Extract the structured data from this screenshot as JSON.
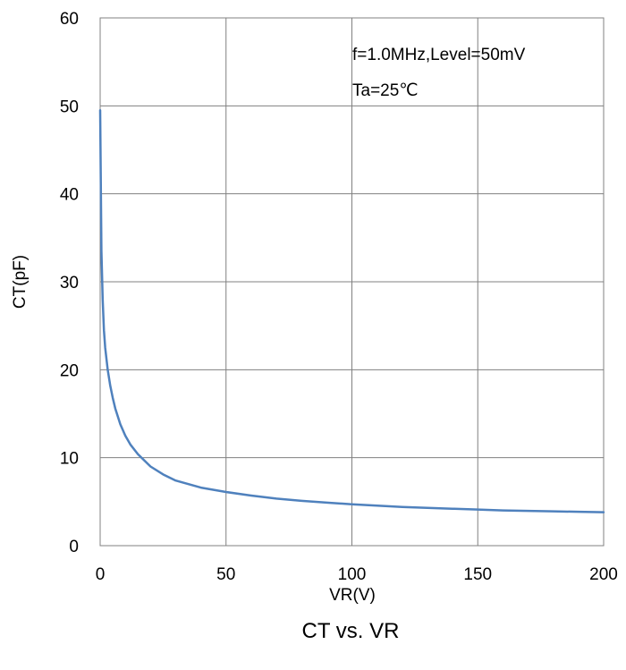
{
  "chart_data": {
    "type": "line",
    "title": "CT vs. VR",
    "xlabel": "VR(V)",
    "ylabel": "CT(pF)",
    "xlim": [
      0,
      200
    ],
    "ylim": [
      0,
      60
    ],
    "x_ticks": [
      0,
      50,
      100,
      150,
      200
    ],
    "y_ticks": [
      0,
      10,
      20,
      30,
      40,
      50,
      60
    ],
    "grid": true,
    "annotations": [
      "f=1.0MHz,Level=50mV",
      "Ta=25℃"
    ],
    "series_color": "#4f81bd",
    "series": [
      {
        "x": [
          0,
          0.5,
          1,
          1.5,
          2,
          3,
          4,
          5,
          6,
          8,
          10,
          12,
          15,
          20,
          25,
          30,
          40,
          50,
          60,
          70,
          80,
          90,
          100,
          110,
          120,
          130,
          140,
          150,
          160,
          170,
          180,
          190,
          200
        ],
        "values": [
          49.5,
          33.5,
          28.0,
          24.5,
          22.5,
          20.0,
          18.2,
          16.8,
          15.6,
          13.8,
          12.5,
          11.5,
          10.4,
          9.0,
          8.1,
          7.4,
          6.6,
          6.1,
          5.7,
          5.35,
          5.1,
          4.9,
          4.7,
          4.55,
          4.4,
          4.3,
          4.2,
          4.1,
          4.0,
          3.95,
          3.9,
          3.85,
          3.8
        ]
      }
    ]
  }
}
